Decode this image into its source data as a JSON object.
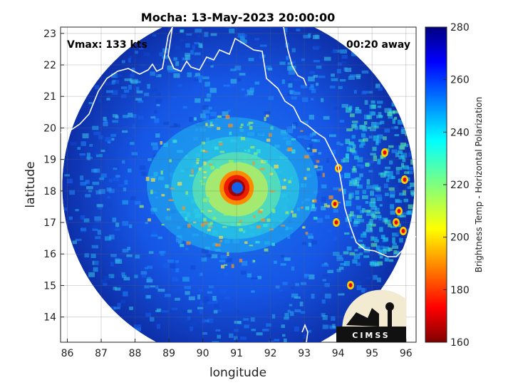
{
  "chart_data": {
    "type": "heatmap",
    "title": "Mocha: 13-May-2023 20:00:00",
    "xlabel": "longitude",
    "ylabel": "latitude",
    "xlim": [
      85.8,
      96.3
    ],
    "ylim": [
      13.2,
      23.2
    ],
    "x_ticks": [
      86,
      87,
      88,
      89,
      90,
      91,
      92,
      93,
      94,
      95,
      96
    ],
    "y_ticks": [
      14,
      15,
      16,
      17,
      18,
      19,
      20,
      21,
      22,
      23
    ],
    "grid": true,
    "colorbar": {
      "label": "Brightness Temp - Horizontal Polarization",
      "range": [
        160,
        280
      ],
      "ticks": [
        160,
        180,
        200,
        220,
        240,
        260,
        280
      ],
      "colormap": "jet"
    },
    "storm_center": {
      "lon": 91.0,
      "lat": 18.1
    },
    "annotations": {
      "vmax": "Vmax: 133 kts",
      "time_away": "00:20 away"
    },
    "swath_center": {
      "lon": 91.05,
      "lat": 18.15
    },
    "swath_radius_deg": 5.2,
    "logo_text": "CIMSS"
  }
}
